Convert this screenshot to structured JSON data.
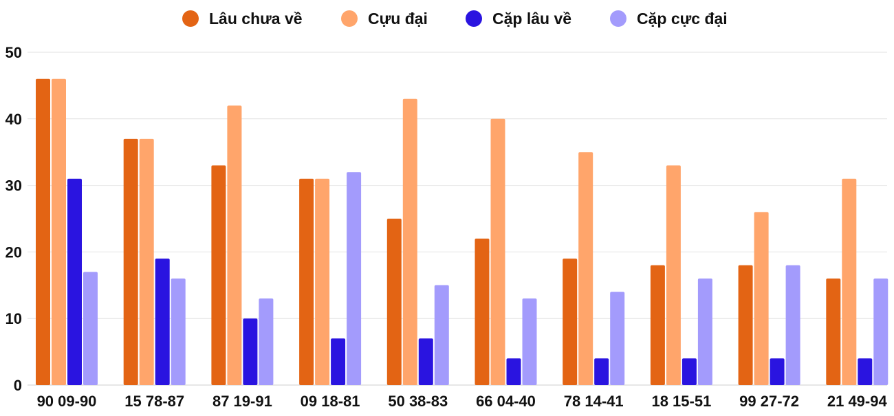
{
  "chart_data": {
    "type": "bar",
    "title": "",
    "xlabel": "",
    "ylabel": "",
    "ylim": [
      0,
      50
    ],
    "yticks": [
      0,
      10,
      20,
      30,
      40,
      50
    ],
    "grid": true,
    "legend_position": "top-center",
    "categories": [
      "90 09-90",
      "15 78-87",
      "87 19-91",
      "09 18-81",
      "50 38-83",
      "66 04-40",
      "78 14-41",
      "18 15-51",
      "99 27-72",
      "21 49-94"
    ],
    "series": [
      {
        "name": "Lâu chưa về",
        "color": "#e36414",
        "values": [
          46,
          37,
          33,
          31,
          25,
          22,
          19,
          18,
          18,
          16
        ]
      },
      {
        "name": "Cựu đại",
        "color": "#ffa56b",
        "values": [
          46,
          37,
          42,
          31,
          43,
          40,
          35,
          33,
          26,
          31
        ]
      },
      {
        "name": "Cặp lâu về",
        "color": "#2a14e0",
        "values": [
          31,
          19,
          10,
          7,
          7,
          4,
          4,
          4,
          4,
          4
        ]
      },
      {
        "name": "Cặp cực đại",
        "color": "#a39bfc",
        "values": [
          17,
          16,
          13,
          32,
          15,
          13,
          14,
          16,
          18,
          16
        ]
      }
    ]
  }
}
